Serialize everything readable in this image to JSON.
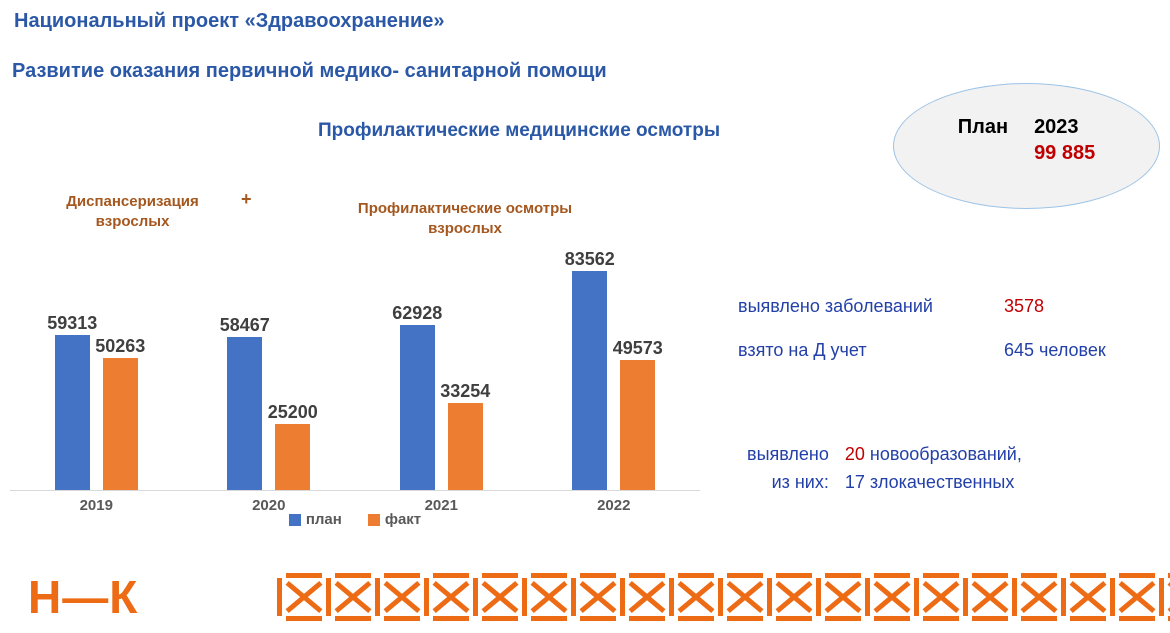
{
  "slide": {
    "title": "Национальный проект «Здравоохранение»",
    "subtitle": "Развитие оказания первичной медико- санитарной помощи",
    "chart_title": "Профилактические медицинские осмотры"
  },
  "plan_badge": {
    "label": "План",
    "year": "2023",
    "value": "99 885"
  },
  "annotations": {
    "left_line1": "Диспансеризация",
    "left_line2": "взрослых",
    "plus": "+",
    "right_line1": "Профилактические осмотры",
    "right_line2": "взрослых"
  },
  "chart_data": {
    "type": "bar",
    "categories": [
      "2019",
      "2020",
      "2021",
      "2022"
    ],
    "series": [
      {
        "name": "план",
        "color": "#4472C4",
        "values": [
          59313,
          58467,
          62928,
          83562
        ]
      },
      {
        "name": "факт",
        "color": "#ED7D31",
        "values": [
          50263,
          25200,
          33254,
          49573
        ]
      }
    ],
    "title": "Профилактические медицинские осмотры",
    "xlabel": "",
    "ylabel": "",
    "grid": false,
    "data_labels": true,
    "legend_position": "bottom"
  },
  "stats": {
    "row1_label": "выявлено заболеваний",
    "row1_value": "3578",
    "row2_label": "взято на Д учет",
    "row2_value": "645 человек",
    "block2_label1": "выявлено",
    "block2_label2": "из них:",
    "block2_value1_red": "20",
    "block2_value1_rest": "новообразований,",
    "block2_value2": "17 злокачественных"
  },
  "footer": {
    "logo": "Н—К",
    "pattern_icon": "boxed-x-icon",
    "pattern_repeat": 18
  },
  "colors": {
    "title_blue": "#2B58A6",
    "text_blue": "#2340A8",
    "accent_red": "#C00000",
    "brown": "#A4571E",
    "bar_plan": "#4472C4",
    "bar_fact": "#ED7D31",
    "label_gray": "#3F3F3F",
    "tick_gray": "#595959",
    "axis_gray": "#D9D9D9",
    "orange": "#ED6B15",
    "ellipse_fill": "#F2F2F2",
    "ellipse_border": "#9DC3E6"
  }
}
